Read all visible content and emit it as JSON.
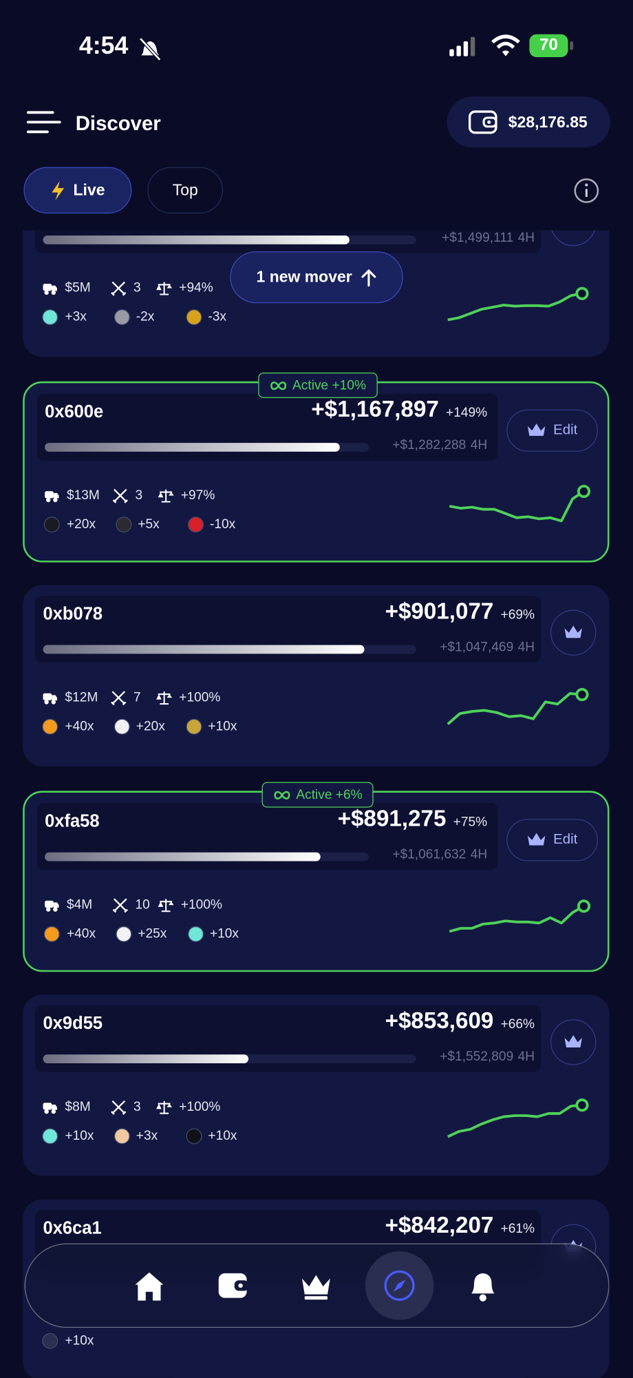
{
  "status": {
    "time": "4:54",
    "battery": "70"
  },
  "header": {
    "title": "Discover",
    "balance": "$28,176.85"
  },
  "tabs": [
    "Live",
    "Top"
  ],
  "toast": "1 new mover",
  "period": "4H",
  "cards": [
    {
      "four_h": "+$1,499,111",
      "bar": 0.82,
      "volume": "$5M",
      "trades": "3",
      "win": "+94%",
      "coins": [
        {
          "label": "+3x",
          "color": "#6ee6d8"
        },
        {
          "label": "-2x",
          "color": "#9a9aa6"
        },
        {
          "label": "-3x",
          "color": "#d8a21c"
        }
      ],
      "sparkline": [
        10,
        14,
        22,
        30,
        34,
        38,
        36,
        37,
        37,
        36,
        44,
        56,
        60
      ]
    },
    {
      "address": "0x600e",
      "pnl": "+$1,167,897",
      "pct": "+149%",
      "four_h": "+$1,282,288",
      "bar": 0.91,
      "active": "Active +10%",
      "action": "Edit",
      "volume": "$13M",
      "trades": "3",
      "win": "+97%",
      "coins": [
        {
          "label": "+20x",
          "color": "#1a1a22"
        },
        {
          "label": "+5x",
          "color": "#2a2a30"
        },
        {
          "label": "-10x",
          "color": "#d8202c"
        }
      ],
      "sparkline": [
        50,
        46,
        48,
        44,
        44,
        36,
        28,
        30,
        26,
        28,
        22,
        64,
        78
      ]
    },
    {
      "address": "0xb078",
      "pnl": "+$901,077",
      "pct": "+69%",
      "four_h": "+$1,047,469",
      "bar": 0.86,
      "volume": "$12M",
      "trades": "7",
      "win": "+100%",
      "coins": [
        {
          "label": "+40x",
          "color": "#f39a1f"
        },
        {
          "label": "+20x",
          "color": "#f2f2f6"
        },
        {
          "label": "+10x",
          "color": "#c9a43a"
        }
      ],
      "sparkline": [
        20,
        40,
        44,
        46,
        42,
        34,
        36,
        30,
        62,
        58,
        78,
        76
      ]
    },
    {
      "address": "0xfa58",
      "pnl": "+$891,275",
      "pct": "+75%",
      "four_h": "+$1,061,632",
      "bar": 0.85,
      "active": "Active +6%",
      "action": "Edit",
      "volume": "$4M",
      "trades": "10",
      "win": "+100%",
      "coins": [
        {
          "label": "+40x",
          "color": "#f39a1f"
        },
        {
          "label": "+25x",
          "color": "#f2f2f6"
        },
        {
          "label": "+10x",
          "color": "#6ee6d8"
        }
      ],
      "sparkline": [
        20,
        26,
        26,
        34,
        36,
        40,
        38,
        38,
        36,
        46,
        36,
        56,
        68
      ]
    },
    {
      "address": "0x9d55",
      "pnl": "+$853,609",
      "pct": "+66%",
      "four_h": "+$1,552,809",
      "bar": 0.55,
      "volume": "$8M",
      "trades": "3",
      "win": "+100%",
      "coins": [
        {
          "label": "+10x",
          "color": "#6ee6d8"
        },
        {
          "label": "+3x",
          "color": "#f1c9a0"
        },
        {
          "label": "+10x",
          "color": "#111118"
        }
      ],
      "sparkline": [
        14,
        24,
        28,
        38,
        46,
        52,
        54,
        54,
        52,
        58,
        58,
        72,
        74
      ]
    },
    {
      "address": "0x6ca1",
      "pnl": "+$842,207",
      "pct": "+61%",
      "coins": [
        {
          "label": "+10x",
          "color": "#2a3150"
        }
      ]
    }
  ]
}
